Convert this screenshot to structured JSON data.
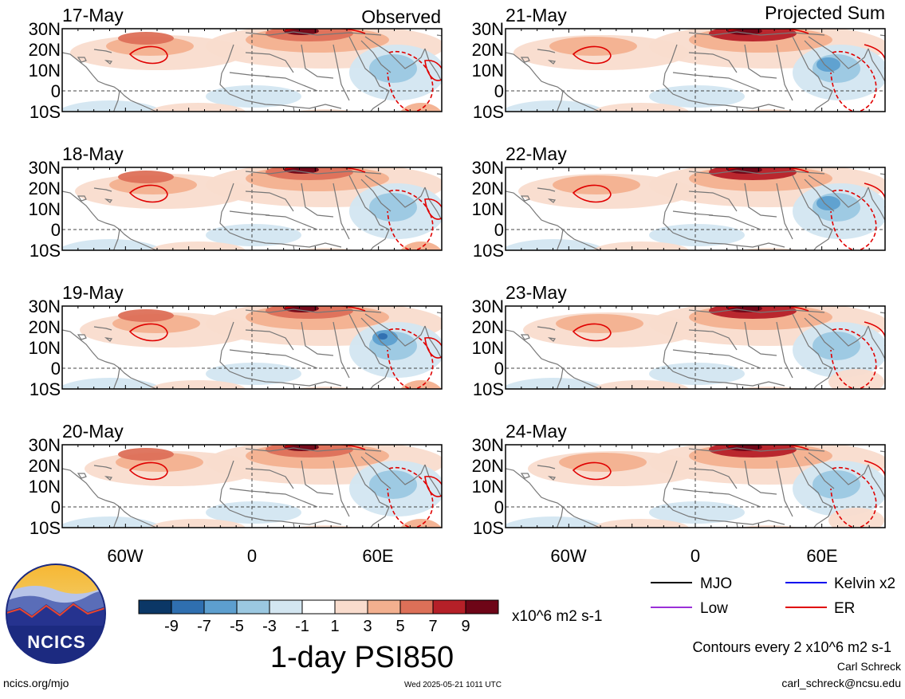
{
  "headers": {
    "left": "Observed",
    "right": "Projected Sum"
  },
  "left_panels": [
    {
      "date": "17-May"
    },
    {
      "date": "18-May"
    },
    {
      "date": "19-May"
    },
    {
      "date": "20-May"
    }
  ],
  "right_panels": [
    {
      "date": "21-May"
    },
    {
      "date": "22-May"
    },
    {
      "date": "23-May"
    },
    {
      "date": "24-May"
    }
  ],
  "lat_labels": [
    "30N",
    "20N",
    "10N",
    "0",
    "10S"
  ],
  "lon_labels": [
    "60W",
    "0",
    "60E"
  ],
  "colorbar": {
    "colors": [
      "#0b3766",
      "#2f6fb0",
      "#5d9fcf",
      "#9bc8e1",
      "#d3e6f1",
      "#ffffff",
      "#f9dccd",
      "#f3b08f",
      "#dd7058",
      "#b52028",
      "#6e0517"
    ],
    "tick_labels": [
      "-9",
      "-7",
      "-5",
      "-3",
      "-1",
      "1",
      "3",
      "5",
      "7",
      "9"
    ],
    "units": "x10^6 m2 s-1"
  },
  "title": "1-day PSI850",
  "legend": [
    {
      "label": "MJO",
      "color": "#000000"
    },
    {
      "label": "Kelvin x2",
      "color": "#0000ee"
    },
    {
      "label": "Low",
      "color": "#9a30d8"
    },
    {
      "label": "ER",
      "color": "#e00000"
    }
  ],
  "contour_note": "Contours every 2 x10^6 m2 s-1",
  "logo": {
    "text": "NCICS"
  },
  "footer": {
    "site": "ncics.org/mjo",
    "timestamp": "Wed 2025-05-21 1011 UTC",
    "author": "Carl Schreck",
    "email": "carl_schreck@ncsu.edu"
  }
}
